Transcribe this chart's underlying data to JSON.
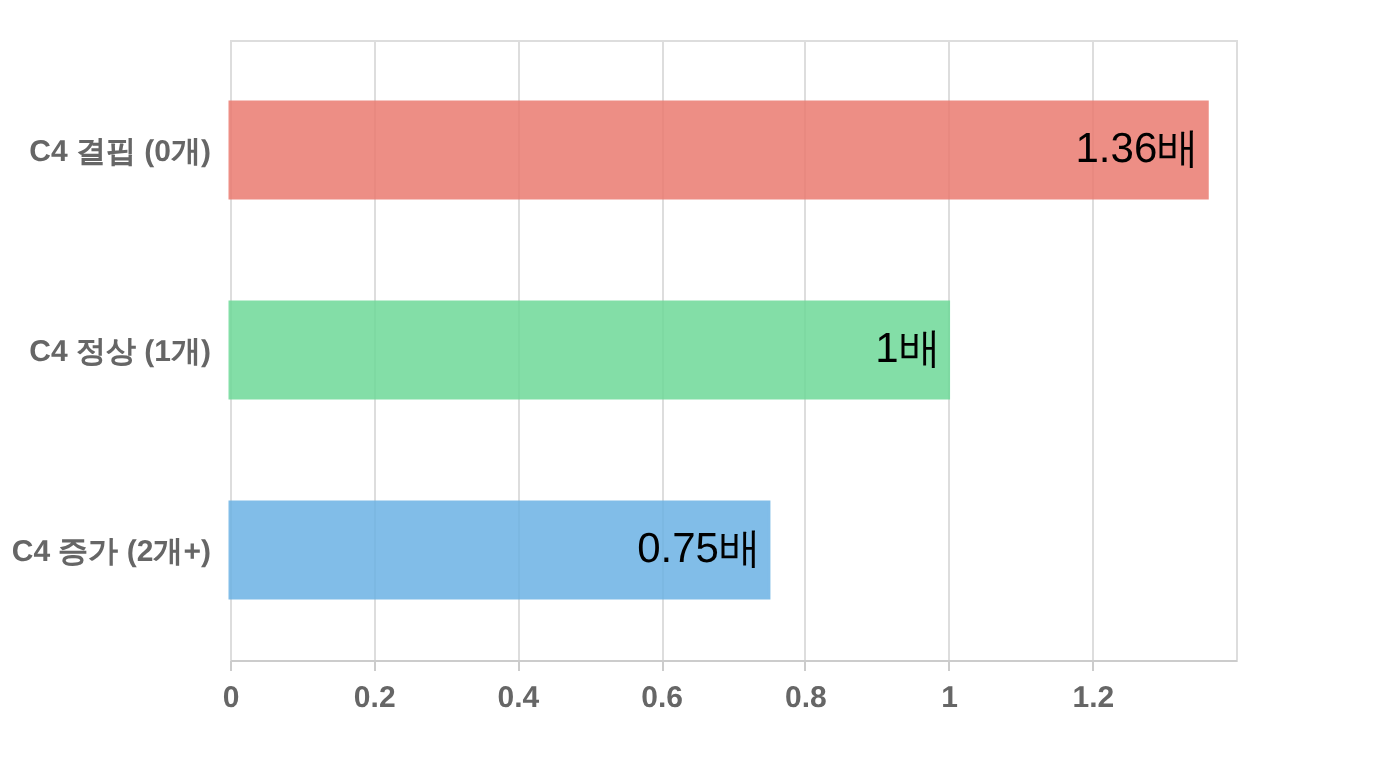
{
  "chart_data": {
    "type": "bar",
    "orientation": "horizontal",
    "categories": [
      "C4 결핍 (0개)",
      "C4 정상 (1개)",
      "C4 증가 (2개+)"
    ],
    "values": [
      1.36,
      1,
      0.75
    ],
    "colors": [
      "#ea7b70",
      "#6ed998",
      "#6cb2e4"
    ],
    "value_labels": [
      "1.36배",
      "1배",
      "0.75배"
    ],
    "xlim": [
      0,
      1.4
    ],
    "xticks": [
      0,
      0.2,
      0.4,
      0.6,
      0.8,
      1,
      1.2
    ],
    "grid": "x"
  }
}
